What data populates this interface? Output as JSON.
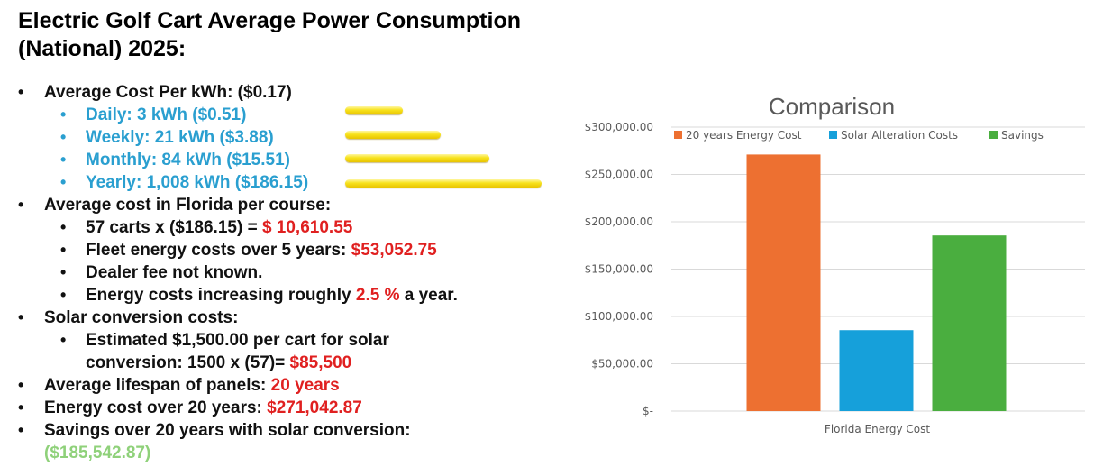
{
  "title": "Electric Golf Cart Average Power Consumption (National) 2025:",
  "bullets": {
    "avg_cost": "Average Cost Per kWh: ($0.17)",
    "daily": "Daily: 3 kWh ($0.51)",
    "weekly": "Weekly: 21 kWh ($3.88)",
    "monthly": "Monthly: 84 kWh ($15.51)",
    "yearly": "Yearly: 1,008 kWh ($186.15)",
    "florida": "Average cost in Florida per course:",
    "carts_prefix": "57 carts x ($186.15) = ",
    "carts_value": "$ 10,610.55",
    "fleet_prefix": "Fleet energy costs over 5 years: ",
    "fleet_value": "$53,052.75",
    "dealer": "Dealer fee not known.",
    "increase_prefix": "Energy costs increasing roughly ",
    "increase_value": "2.5 %",
    "increase_suffix": " a year.",
    "solar": "Solar conversion costs:",
    "estimate_line1": "Estimated $1,500.00 per cart for solar",
    "estimate_line2_prefix": "conversion: 1500 x (57)= ",
    "estimate_value": "$85,500",
    "lifespan_prefix": "Average lifespan of panels: ",
    "lifespan_value": "20 years",
    "energy20_prefix": "Energy cost over 20 years: ",
    "energy20_value": "$271,042.87",
    "savings": "Savings over 20 years with solar conversion:",
    "savings_value": "($185,542.87)"
  },
  "consumption_bars": [
    0.51,
    3.88,
    15.51,
    186.15
  ],
  "chart_data": {
    "type": "bar",
    "title": "Comparison",
    "categories": [
      "Florida Energy Cost"
    ],
    "series": [
      {
        "name": "20 years Energy Cost",
        "values": [
          271042.87
        ],
        "color": "#ed7031"
      },
      {
        "name": "Solar Alteration Costs",
        "values": [
          85500
        ],
        "color": "#16a0da"
      },
      {
        "name": "Savings",
        "values": [
          185542.87
        ],
        "color": "#4aae3f"
      }
    ],
    "ylim": [
      0,
      300000
    ],
    "yticks": [
      0,
      50000,
      100000,
      150000,
      200000,
      250000,
      300000
    ],
    "ytick_labels": [
      "$-",
      "$50,000.00",
      "$100,000.00",
      "$150,000.00",
      "$200,000.00",
      "$250,000.00",
      "$300,000.00"
    ],
    "legend": "top",
    "grid": true,
    "xlabel": "",
    "ylabel": ""
  }
}
